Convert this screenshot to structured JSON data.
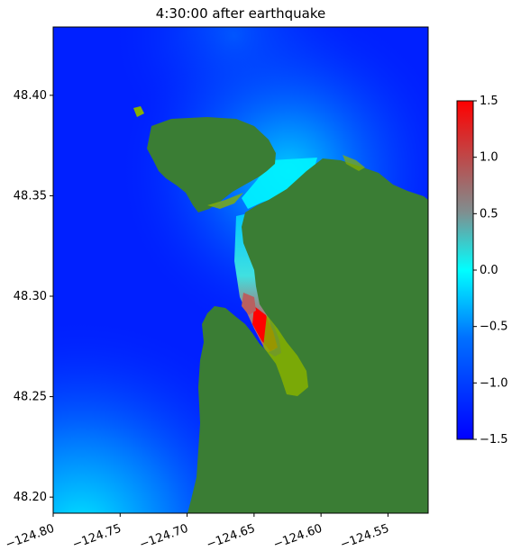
{
  "title": "4:30:00 after earthquake",
  "map": {
    "x_ticks": [
      {
        "value": -124.8,
        "label": "−124.80"
      },
      {
        "value": -124.75,
        "label": "−124.75"
      },
      {
        "value": -124.7,
        "label": "−124.70"
      },
      {
        "value": -124.65,
        "label": "−124.65"
      },
      {
        "value": -124.6,
        "label": "−124.60"
      },
      {
        "value": -124.55,
        "label": "−124.55"
      }
    ],
    "y_ticks": [
      {
        "value": 48.2,
        "label": "48.20"
      },
      {
        "value": 48.25,
        "label": "48.25"
      },
      {
        "value": 48.3,
        "label": "48.30"
      },
      {
        "value": 48.35,
        "label": "48.35"
      },
      {
        "value": 48.4,
        "label": "48.40"
      }
    ],
    "x_range": [
      -124.8,
      -124.52
    ],
    "y_range": [
      48.192,
      48.434
    ],
    "land_color": "#3a7d34",
    "intertidal_color": "#86b000",
    "ocean_color": "#0020ff"
  },
  "colorbar": {
    "min": -1.5,
    "max": 1.5,
    "ticks": [
      {
        "value": 1.5,
        "label": "1.5"
      },
      {
        "value": 1.0,
        "label": "1.0"
      },
      {
        "value": 0.5,
        "label": "0.5"
      },
      {
        "value": 0.0,
        "label": "0.0"
      },
      {
        "value": -0.5,
        "label": "−0.5"
      },
      {
        "value": -1.0,
        "label": "−1.0"
      },
      {
        "value": -1.5,
        "label": "−1.5"
      }
    ],
    "colors": [
      "#0000ff",
      "#00a0ff",
      "#00ffff",
      "#808080",
      "#ff0000"
    ]
  }
}
